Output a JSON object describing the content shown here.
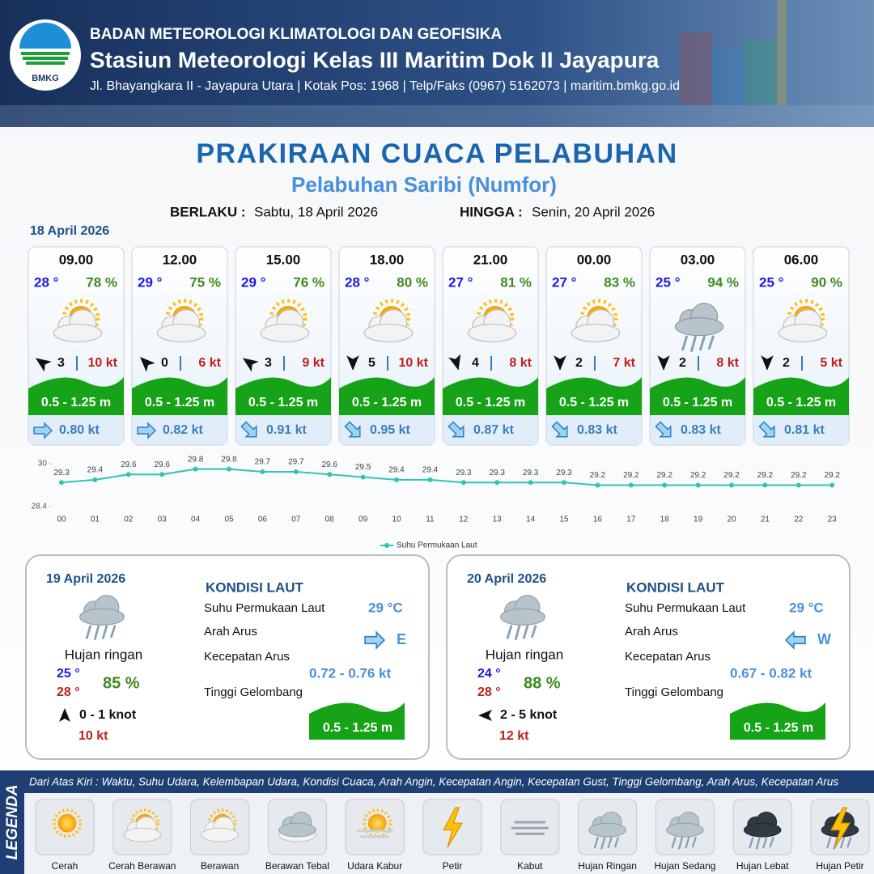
{
  "header": {
    "org": "BADAN METEOROLOGI KLIMATOLOGI DAN GEOFISIKA",
    "station": "Stasiun Meteorologi Kelas III Maritim Dok II Jayapura",
    "address": "Jl. Bhayangkara II - Jayapura Utara | Kotak Pos: 1968 | Telp/Faks (0967) 5162073 | maritim.bmkg.go.id",
    "logo": "BMKG"
  },
  "title": "PRAKIRAAN CUACA PELABUHAN",
  "subtitle": "Pelabuhan Saribi (Numfor)",
  "validity": {
    "from_label": "BERLAKU :",
    "from": "Sabtu, 18 April 2026",
    "to_label": "HINGGA :",
    "to": "Senin, 20 April 2026"
  },
  "today": {
    "date": "18 April 2026",
    "slots": [
      {
        "time": "09.00",
        "temp": "28 °",
        "humidity": "78 %",
        "wind_speed": "3",
        "gust": "10 kt",
        "wave": "0.5 - 1.25 m",
        "current": "0.80 kt"
      },
      {
        "time": "12.00",
        "temp": "29 °",
        "humidity": "75 %",
        "wind_speed": "0",
        "gust": "6 kt",
        "wave": "0.5 - 1.25 m",
        "current": "0.82 kt"
      },
      {
        "time": "15.00",
        "temp": "29 °",
        "humidity": "76 %",
        "wind_speed": "3",
        "gust": "9 kt",
        "wave": "0.5 - 1.25 m",
        "current": "0.91 kt"
      },
      {
        "time": "18.00",
        "temp": "28 °",
        "humidity": "80 %",
        "wind_speed": "5",
        "gust": "10 kt",
        "wave": "0.5 - 1.25 m",
        "current": "0.95 kt"
      },
      {
        "time": "21.00",
        "temp": "27 °",
        "humidity": "81 %",
        "wind_speed": "4",
        "gust": "8 kt",
        "wave": "0.5 - 1.25 m",
        "current": "0.87 kt"
      },
      {
        "time": "00.00",
        "temp": "27 °",
        "humidity": "83 %",
        "wind_speed": "2",
        "gust": "7 kt",
        "wave": "0.5 - 1.25 m",
        "current": "0.83 kt"
      },
      {
        "time": "03.00",
        "temp": "25 °",
        "humidity": "94 %",
        "wind_speed": "2",
        "gust": "8 kt",
        "wave": "0.5 - 1.25 m",
        "current": "0.83 kt"
      },
      {
        "time": "06.00",
        "temp": "25 °",
        "humidity": "90 %",
        "wind_speed": "2",
        "gust": "5 kt",
        "wave": "0.5 - 1.25 m",
        "current": "0.81 kt"
      }
    ]
  },
  "chart_data": {
    "type": "line",
    "categories": [
      "00",
      "01",
      "02",
      "03",
      "04",
      "05",
      "06",
      "07",
      "08",
      "09",
      "10",
      "11",
      "12",
      "13",
      "14",
      "15",
      "16",
      "17",
      "18",
      "19",
      "20",
      "21",
      "22",
      "23"
    ],
    "series": [
      {
        "name": "Suhu Permukaan Laut",
        "color": "#2ec4b6",
        "values": [
          29.3,
          29.4,
          29.6,
          29.6,
          29.8,
          29.8,
          29.7,
          29.7,
          29.6,
          29.5,
          29.4,
          29.4,
          29.3,
          29.3,
          29.3,
          29.3,
          29.2,
          29.2,
          29.2,
          29.2,
          29.2,
          29.2,
          29.2,
          29.2
        ]
      }
    ],
    "ylim": [
      28.4,
      30
    ],
    "yticks": [
      28.4,
      30
    ]
  },
  "days": [
    {
      "date": "19 April 2026",
      "condition": "Hujan ringan",
      "temp_min": "25 °",
      "temp_max": "28 °",
      "humidity": "85 %",
      "wind": "0 - 1 knot",
      "gust": "10 kt",
      "sea": {
        "title": "KONDISI LAUT",
        "sst_label": "Suhu Permukaan Laut",
        "sst": "29 °C",
        "current_dir_label": "Arah Arus",
        "current_dir": "E",
        "current_speed_label": "Kecepatan Arus",
        "current_speed": "0.72 -  0.76 kt",
        "wave_label": "Tinggi Gelombang",
        "wave": "0.5 - 1.25 m"
      }
    },
    {
      "date": "20 April 2026",
      "condition": "Hujan ringan",
      "temp_min": "24 °",
      "temp_max": "28 °",
      "humidity": "88 %",
      "wind": "2 - 5 knot",
      "gust": "12 kt",
      "sea": {
        "title": "KONDISI LAUT",
        "sst_label": "Suhu Permukaan Laut",
        "sst": "29 °C",
        "current_dir_label": "Arah Arus",
        "current_dir": "W",
        "current_speed_label": "Kecepatan Arus",
        "current_speed": "0.67 -  0.82 kt",
        "wave_label": "Tinggi Gelombang",
        "wave": "0.5 - 1.25 m"
      }
    }
  ],
  "legend": {
    "title": "LEGENDA",
    "description": "Dari Atas Kiri : Waktu, Suhu Udara, Kelembapan Udara, Kondisi Cuaca, Arah Angin, Kecepatan Angin, Kecepatan Gust, Tinggi Gelombang, Arah Arus, Kecepatan Arus",
    "items": [
      "Cerah",
      "Cerah Berawan",
      "Berawan",
      "Berawan Tebal",
      "Udara Kabur",
      "Petir",
      "Kabut",
      "Hujan Ringan",
      "Hujan Sedang",
      "Hujan Lebat",
      "Hujan Petir"
    ]
  }
}
